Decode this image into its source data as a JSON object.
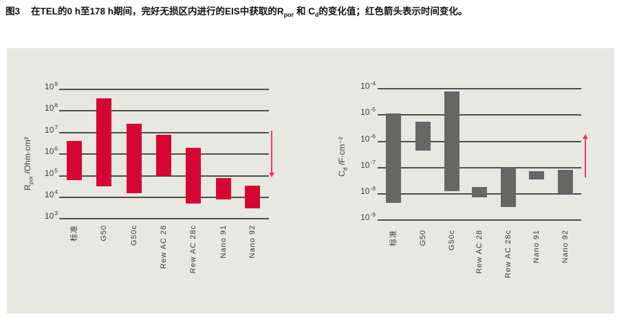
{
  "caption": {
    "fig_label": "图3",
    "part1": "在TEL的0 h至178 h期间，完好无损区内进行的EIS中获取的R",
    "sub1": "por",
    "part2": " 和 C",
    "sub2": "d",
    "part3": "的变化值；红色箭头表示时间变化。"
  },
  "colors": {
    "panel_bg": "#e8e8e3",
    "gridline": "#4e4d48",
    "rpor_bar": "#d60432",
    "cd_bar": "#666664",
    "arrow_red": "#ee3a5c",
    "label_text": "#3c3b37"
  },
  "chart_data": [
    {
      "type": "bar",
      "subtype": "floating-range-bars-log-scale",
      "title": "",
      "axis": {
        "ylabel_base": "R",
        "ylabel_sub": "por",
        "ylabel_rest": " /Ohm·cm²",
        "y_scale": "log10",
        "y_tick_exponents": [
          9,
          8,
          7,
          6,
          5,
          4,
          3
        ],
        "ylim_exponents": [
          3,
          9
        ],
        "grid": "horizontal"
      },
      "categories": [
        "标准",
        "G50",
        "G50c",
        "Rew AC 28",
        "Rew AC 28c",
        "Nano 91",
        "Nano 92"
      ],
      "series": [
        {
          "name": "R_por change 0 h → 178 h (log10 exponent range)",
          "ranges_exp": [
            [
              4.8,
              6.6
            ],
            [
              4.5,
              8.6
            ],
            [
              4.2,
              7.4
            ],
            [
              5.0,
              6.9
            ],
            [
              3.7,
              6.3
            ],
            [
              3.9,
              4.9
            ],
            [
              3.5,
              4.55
            ]
          ]
        }
      ],
      "bar_color_key": "rpor_bar",
      "arrow": {
        "direction": "down",
        "meaning": "时间变化"
      }
    },
    {
      "type": "bar",
      "subtype": "floating-range-bars-log-scale",
      "title": "",
      "axis": {
        "ylabel_base": "C",
        "ylabel_sub": "d",
        "ylabel_rest": " /F·cm⁻²",
        "y_scale": "log10",
        "y_tick_exponents": [
          -4,
          -5,
          -6,
          -7,
          -8,
          -9
        ],
        "ylim_exponents": [
          -9,
          -4
        ],
        "grid": "horizontal"
      },
      "categories": [
        "标准",
        "G50",
        "G50c",
        "Rew AC 28",
        "Rew AC 28c",
        "Nano 91",
        "Nano 92"
      ],
      "series": [
        {
          "name": "C_d change 0 h → 178 h (log10 exponent range)",
          "ranges_exp": [
            [
              -8.35,
              -4.95
            ],
            [
              -6.35,
              -5.25
            ],
            [
              -7.9,
              -4.1
            ],
            [
              -8.15,
              -7.75
            ],
            [
              -8.5,
              -7.0
            ],
            [
              -7.45,
              -7.15
            ],
            [
              -8.0,
              -7.1
            ]
          ]
        }
      ],
      "bar_color_key": "cd_bar",
      "arrow": {
        "direction": "up",
        "meaning": "时间变化"
      }
    }
  ]
}
